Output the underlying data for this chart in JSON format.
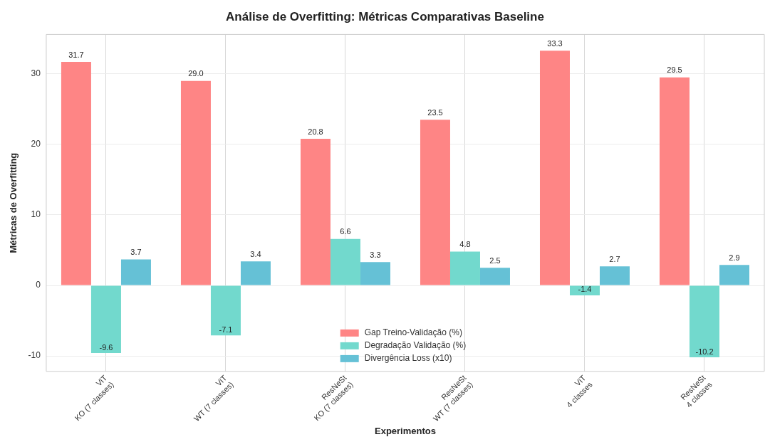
{
  "chart_data": {
    "type": "bar",
    "title": "Análise de Overfitting: Métricas Comparativas Baseline",
    "xlabel": "Experimentos",
    "ylabel": "Métricas de Overfitting",
    "categories": [
      "ViT\nKO (7 classes)",
      "ViT\nWT (7 classes)",
      "ResNeSt\nKO (7 classes)",
      "ResNeSt\nWT (7 classes)",
      "ViT\n4 classes",
      "ResNeSt\n4 classes"
    ],
    "series": [
      {
        "name": "Gap Treino-Validação (%)",
        "color": "#fe8585",
        "values": [
          31.7,
          29.0,
          20.8,
          23.5,
          33.3,
          29.5
        ],
        "value_labels": [
          "31.7",
          "29.0",
          "20.8",
          "23.5",
          "33.3",
          "29.5"
        ]
      },
      {
        "name": "Degradação Validação (%)",
        "color": "#72d9cd",
        "values": [
          -9.6,
          -7.1,
          6.6,
          4.8,
          -1.4,
          -10.2
        ],
        "value_labels": [
          "-9.6",
          "-7.1",
          "6.6",
          "4.8",
          "-1.4",
          "-10.2"
        ]
      },
      {
        "name": "Divergência Loss (x10)",
        "color": "#65c1d6",
        "values": [
          3.7,
          3.4,
          3.3,
          2.5,
          2.7,
          2.9
        ],
        "value_labels": [
          "3.7",
          "3.4",
          "3.3",
          "2.5",
          "2.7",
          "2.9"
        ]
      }
    ],
    "ylim": [
      -12.2,
      35.6
    ],
    "yticks": [
      -10,
      0,
      10,
      20,
      30
    ],
    "grid": true,
    "legend": "bottom"
  }
}
